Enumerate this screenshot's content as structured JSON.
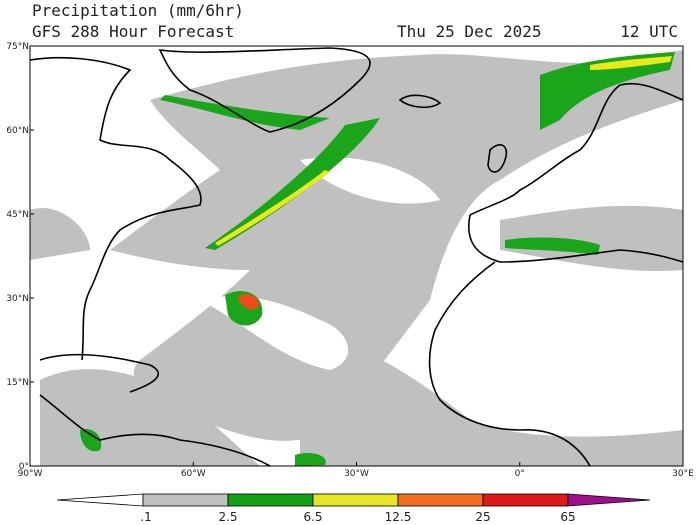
{
  "header": {
    "title": "Precipitation (mm/6hr)",
    "subtitle": "GFS 288 Hour Forecast",
    "date": "Thu 25 Dec 2025",
    "time": "12 UTC"
  },
  "map": {
    "lat_labels": [
      "75°N",
      "60°N",
      "45°N",
      "30°N",
      "15°N",
      "0°"
    ],
    "lon_labels": [
      "90°W",
      "60°W",
      "30°W",
      "0°",
      "30°E"
    ]
  },
  "colorbar": {
    "labels": [
      ".1",
      "2.5",
      "6.5",
      "12.5",
      "25",
      "65"
    ]
  }
}
